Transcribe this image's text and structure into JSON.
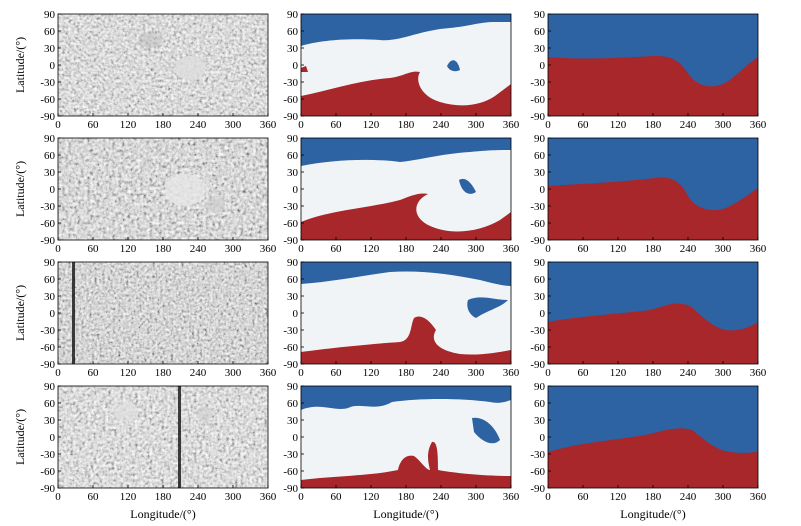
{
  "figure": {
    "ylabel": "Latitude/(°)",
    "xlabel": "Longitude/(°)"
  },
  "colors": {
    "negative": "#a8272b",
    "positive": "#2d62a3",
    "neutral": "#f1f4f6",
    "frame": "#000000"
  },
  "chart_data": [
    {
      "type": "heatmap",
      "xlim": [
        0,
        360
      ],
      "ylim": [
        -90,
        90
      ],
      "xticks": [
        "0",
        "60",
        "120",
        "180",
        "240",
        "300",
        "360"
      ],
      "yticks": [
        "90",
        "60",
        "30",
        "0",
        "-30",
        "-60",
        "-90"
      ],
      "rows": [
        {
          "magnetogram": "grayscale synoptic map",
          "pfss_boundary_top": [],
          "pfss_boundary_bottom": [],
          "polarity_boundary": [
            [
              0,
              15
            ],
            [
              60,
              12
            ],
            [
              120,
              14
            ],
            [
              180,
              16
            ],
            [
              220,
              10
            ],
            [
              250,
              -25
            ],
            [
              270,
              -35
            ],
            [
              300,
              -28
            ],
            [
              330,
              -5
            ],
            [
              360,
              15
            ]
          ]
        },
        {
          "magnetogram": "grayscale synoptic map",
          "polarity_boundary": [
            [
              0,
              5
            ],
            [
              60,
              8
            ],
            [
              120,
              12
            ],
            [
              180,
              18
            ],
            [
              220,
              20
            ],
            [
              250,
              -10
            ],
            [
              270,
              -35
            ],
            [
              300,
              -35
            ],
            [
              330,
              -15
            ],
            [
              360,
              5
            ]
          ]
        },
        {
          "magnetogram": "grayscale synoptic map",
          "polarity_boundary": [
            [
              0,
              -15
            ],
            [
              60,
              0
            ],
            [
              120,
              5
            ],
            [
              180,
              15
            ],
            [
              215,
              20
            ],
            [
              250,
              5
            ],
            [
              280,
              -20
            ],
            [
              300,
              -28
            ],
            [
              330,
              -25
            ],
            [
              360,
              -15
            ]
          ]
        },
        {
          "magnetogram": "grayscale synoptic map",
          "polarity_boundary": [
            [
              0,
              -25
            ],
            [
              60,
              -5
            ],
            [
              120,
              0
            ],
            [
              180,
              12
            ],
            [
              215,
              20
            ],
            [
              250,
              10
            ],
            [
              290,
              -20
            ],
            [
              320,
              -30
            ],
            [
              360,
              -25
            ]
          ]
        }
      ]
    }
  ]
}
